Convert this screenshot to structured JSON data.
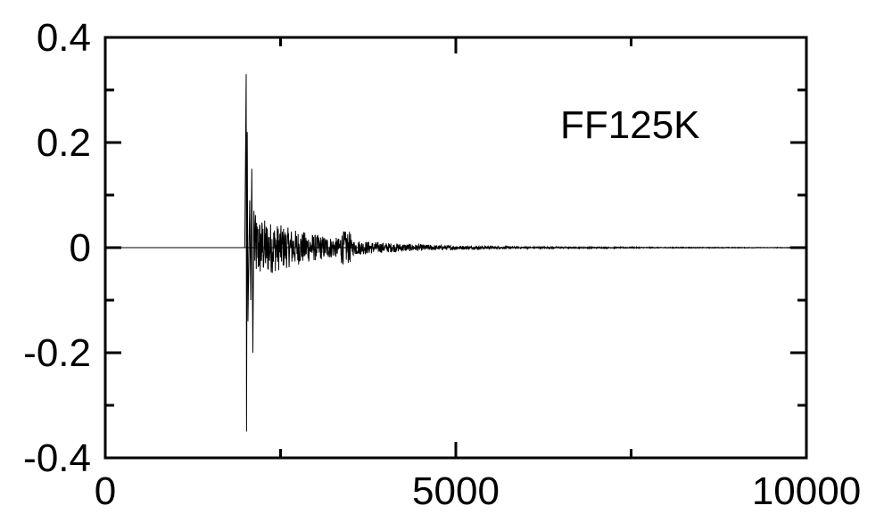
{
  "chart_data": {
    "type": "line",
    "title": "",
    "xlabel": "",
    "ylabel": "",
    "annotation": "FF125K",
    "xlim": [
      0,
      10000
    ],
    "ylim": [
      -0.4,
      0.4
    ],
    "x_ticks": [
      0,
      5000,
      10000
    ],
    "x_tick_labels": [
      "0",
      "5000",
      "10000"
    ],
    "y_ticks": [
      0.4,
      0.2,
      0,
      -0.2,
      -0.4
    ],
    "y_tick_labels": [
      "0.4",
      "0.2",
      "0",
      "-0.2",
      "-0.4"
    ],
    "grid": false,
    "line_color": "#000000",
    "series": [
      {
        "description_points": [
          [
            0,
            0
          ],
          [
            2000,
            0
          ],
          [
            2020,
            0.33
          ],
          [
            2030,
            -0.35
          ],
          [
            2040,
            0.22
          ],
          [
            2060,
            -0.12
          ],
          [
            2080,
            0.08
          ],
          [
            2100,
            -0.08
          ],
          [
            2120,
            0.15
          ],
          [
            2140,
            -0.2
          ],
          [
            2160,
            0.06
          ],
          [
            2200,
            -0.05
          ],
          [
            2300,
            0.04
          ],
          [
            2400,
            -0.04
          ],
          [
            2600,
            0.03
          ],
          [
            2800,
            -0.025
          ],
          [
            3000,
            0.02
          ],
          [
            3400,
            0.025
          ],
          [
            3600,
            -0.015
          ],
          [
            4000,
            0.01
          ],
          [
            4500,
            -0.008
          ],
          [
            5000,
            0.006
          ],
          [
            6000,
            -0.004
          ],
          [
            7000,
            0.002
          ],
          [
            8000,
            -0.001
          ],
          [
            9000,
            0.0005
          ],
          [
            10000,
            0
          ]
        ]
      }
    ]
  }
}
